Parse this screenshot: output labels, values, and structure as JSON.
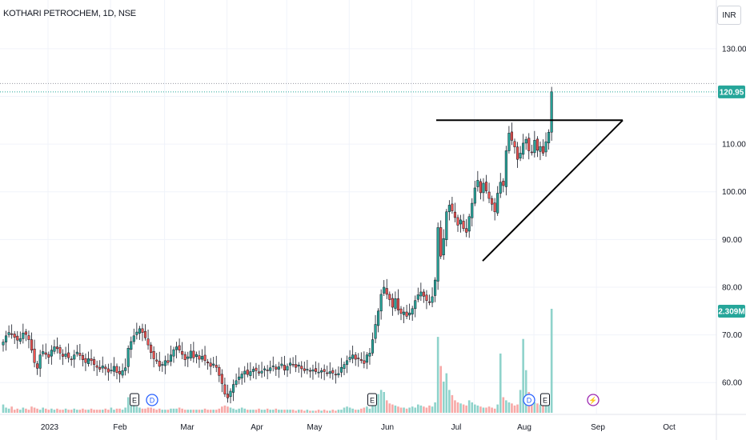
{
  "header": {
    "symbol_title": "KOTHARI PETROCHEM, 1D, NSE",
    "currency": "INR"
  },
  "colors": {
    "up": "#26a69a",
    "down": "#ef5350",
    "vol_up": "#8fd3cb",
    "vol_down": "#f7a9a7",
    "line": "#000000",
    "last_price_bg": "#26a69a"
  },
  "chart_data": {
    "type": "candlestick",
    "title": "KOTHARI PETROCHEM, 1D, NSE",
    "y_ticks": [
      "60.00",
      "70.00",
      "80.00",
      "90.00",
      "100.00",
      "110.00",
      "120.00",
      "130.00"
    ],
    "x_ticks": [
      "2023",
      "Feb",
      "Mar",
      "Apr",
      "May",
      "Jun",
      "Jul",
      "Aug",
      "Sep",
      "Oct"
    ],
    "ylim": [
      53.5,
      133.5
    ],
    "last_price": "120.95",
    "volume_label": "2.309M",
    "close_series": [
      68.5,
      69.8,
      70.5,
      70.2,
      69.5,
      68.9,
      69.2,
      70.4,
      70.1,
      69.0,
      66.8,
      64.2,
      63.0,
      65.8,
      66.5,
      65.9,
      65.3,
      66.8,
      67.5,
      67.1,
      66.2,
      65.5,
      66.0,
      65.2,
      64.9,
      65.8,
      66.4,
      65.7,
      64.8,
      64.2,
      65.0,
      64.6,
      63.8,
      63.2,
      62.8,
      63.5,
      62.9,
      62.2,
      62.6,
      63.4,
      62.1,
      61.8,
      62.5,
      63.1,
      67.2,
      68.6,
      69.8,
      70.6,
      71.3,
      70.5,
      69.4,
      67.9,
      66.3,
      65.0,
      64.5,
      63.4,
      63.8,
      64.6,
      64.2,
      65.8,
      66.9,
      67.5,
      66.8,
      65.9,
      64.8,
      65.4,
      66.6,
      65.2,
      65.9,
      64.9,
      65.5,
      64.6,
      64.1,
      63.4,
      63.9,
      63.2,
      61.5,
      59.8,
      57.6,
      56.8,
      58.2,
      59.6,
      60.4,
      61.2,
      61.8,
      62.4,
      61.7,
      62.3,
      62.8,
      62.5,
      62.0,
      62.4,
      62.9,
      62.5,
      63.1,
      63.5,
      62.8,
      63.3,
      63.9,
      62.6,
      63.4,
      64.1,
      63.8,
      63.2,
      63.7,
      62.9,
      62.5,
      62.8,
      62.4,
      62.7,
      62.3,
      62.2,
      62.5,
      62.3,
      61.9,
      62.3,
      62.0,
      61.6,
      61.9,
      63.2,
      63.8,
      64.6,
      65.3,
      65.8,
      64.9,
      65.1,
      64.6,
      64.0,
      65.8,
      66.2,
      69.0,
      72.2,
      75.0,
      78.5,
      80.0,
      78.5,
      77.4,
      75.8,
      77.6,
      75.2,
      74.5,
      74.8,
      73.9,
      74.6,
      75.5,
      77.2,
      78.4,
      79.0,
      78.1,
      77.2,
      76.8,
      78.0,
      81.5,
      92.5,
      86.5,
      90.2,
      95.8,
      97.2,
      96.0,
      94.6,
      93.0,
      94.1,
      92.3,
      91.5,
      94.8,
      97.6,
      100.8,
      102.4,
      99.8,
      101.8,
      100.2,
      98.6,
      97.4,
      95.8,
      99.7,
      102.0,
      101.3,
      108.6,
      112.3,
      110.8,
      109.4,
      106.8,
      108.1,
      110.2,
      111.0,
      108.6,
      108.2,
      110.8,
      108.7,
      109.5,
      108.1,
      110.5,
      112.5,
      120.95
    ],
    "volume_series_relative": [
      0.08,
      0.05,
      0.04,
      0.06,
      0.03,
      0.04,
      0.03,
      0.05,
      0.04,
      0.03,
      0.06,
      0.05,
      0.04,
      0.03,
      0.05,
      0.04,
      0.03,
      0.04,
      0.03,
      0.04,
      0.03,
      0.03,
      0.04,
      0.03,
      0.03,
      0.04,
      0.03,
      0.03,
      0.04,
      0.03,
      0.03,
      0.04,
      0.03,
      0.03,
      0.03,
      0.03,
      0.04,
      0.03,
      0.05,
      0.03,
      0.04,
      0.04,
      0.03,
      0.05,
      0.15,
      0.09,
      0.07,
      0.06,
      0.05,
      0.04,
      0.04,
      0.05,
      0.05,
      0.04,
      0.03,
      0.04,
      0.03,
      0.03,
      0.03,
      0.04,
      0.04,
      0.04,
      0.05,
      0.04,
      0.03,
      0.03,
      0.03,
      0.03,
      0.03,
      0.03,
      0.03,
      0.04,
      0.03,
      0.03,
      0.03,
      0.03,
      0.04,
      0.06,
      0.07,
      0.06,
      0.05,
      0.04,
      0.03,
      0.04,
      0.05,
      0.04,
      0.03,
      0.03,
      0.03,
      0.03,
      0.04,
      0.03,
      0.03,
      0.04,
      0.03,
      0.03,
      0.04,
      0.03,
      0.03,
      0.03,
      0.03,
      0.03,
      0.03,
      0.02,
      0.03,
      0.03,
      0.02,
      0.03,
      0.02,
      0.02,
      0.02,
      0.03,
      0.02,
      0.03,
      0.02,
      0.02,
      0.03,
      0.02,
      0.03,
      0.03,
      0.05,
      0.06,
      0.05,
      0.04,
      0.03,
      0.03,
      0.04,
      0.05,
      0.06,
      0.04,
      0.1,
      0.14,
      0.18,
      0.22,
      0.2,
      0.12,
      0.09,
      0.08,
      0.07,
      0.06,
      0.05,
      0.05,
      0.04,
      0.05,
      0.06,
      0.05,
      0.08,
      0.07,
      0.06,
      0.05,
      0.07,
      0.06,
      0.1,
      0.73,
      0.45,
      0.3,
      0.38,
      0.22,
      0.17,
      0.12,
      0.1,
      0.09,
      0.08,
      0.07,
      0.12,
      0.1,
      0.08,
      0.07,
      0.06,
      0.05,
      0.05,
      0.06,
      0.05,
      0.04,
      0.08,
      0.57,
      0.15,
      0.12,
      0.1,
      0.09,
      0.07,
      0.08,
      0.22,
      0.71,
      0.41,
      0.2,
      0.12,
      0.1,
      0.09,
      0.08,
      0.07,
      0.08,
      0.1,
      1.0
    ],
    "events": [
      {
        "label": "E",
        "kind": "earnings"
      },
      {
        "label": "D",
        "kind": "dividend"
      },
      {
        "label": "E",
        "kind": "earnings"
      },
      {
        "label": "D",
        "kind": "dividend"
      },
      {
        "label": "E",
        "kind": "earnings"
      },
      {
        "label": "⚡",
        "kind": "flash"
      }
    ],
    "drawings": [
      {
        "type": "horizontal-resistance",
        "price": 115.0
      },
      {
        "type": "ascending-support",
        "from_price": 85.5,
        "to_price": 115.0
      }
    ],
    "grid": true
  }
}
